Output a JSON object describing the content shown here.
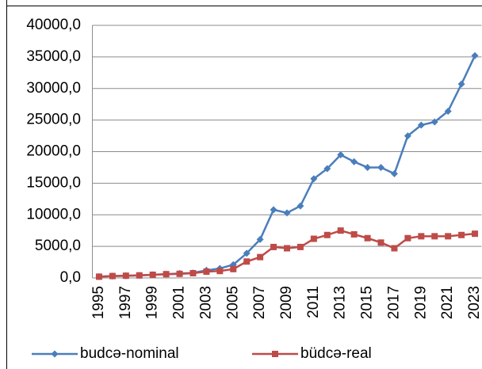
{
  "chart_data": {
    "type": "line",
    "categories": [
      "1995",
      null,
      "1997",
      null,
      "1999",
      null,
      "2001",
      null,
      "2003",
      null,
      "2005",
      null,
      "2007",
      null,
      "2009",
      null,
      "2011",
      null,
      "2013",
      null,
      "2015",
      null,
      "2017",
      null,
      "2019",
      null,
      "2021",
      null,
      "2023"
    ],
    "series": [
      {
        "name": "budcə-nominal",
        "color": "#4a7ebb",
        "marker": "diamond",
        "values": [
          200,
          300,
          350,
          400,
          500,
          600,
          700,
          800,
          1200,
          1500,
          2100,
          3900,
          6100,
          10800,
          10300,
          11400,
          15700,
          17300,
          19500,
          18400,
          17500,
          17500,
          16500,
          22500,
          24200,
          24700,
          26400,
          30700,
          35200
        ]
      },
      {
        "name": "büdcə-real",
        "color": "#be4b48",
        "marker": "square",
        "values": [
          200,
          300,
          350,
          400,
          500,
          600,
          650,
          750,
          1000,
          1100,
          1400,
          2600,
          3300,
          4900,
          4700,
          4900,
          6200,
          6800,
          7500,
          6900,
          6300,
          5600,
          4700,
          6300,
          6600,
          6600,
          6600,
          6800,
          7000
        ]
      }
    ],
    "ylim": [
      0,
      40000
    ],
    "yticks": [
      {
        "value": 0,
        "label": "0,0"
      },
      {
        "value": 5000,
        "label": "5000,0"
      },
      {
        "value": 10000,
        "label": "10000,0"
      },
      {
        "value": 15000,
        "label": "15000,0"
      },
      {
        "value": 20000,
        "label": "20000,0"
      },
      {
        "value": 25000,
        "label": "25000,0"
      },
      {
        "value": 30000,
        "label": "30000,0"
      },
      {
        "value": 35000,
        "label": "35000,0"
      },
      {
        "value": 40000,
        "label": "40000,0"
      }
    ],
    "grid": true,
    "legend": "bottom"
  }
}
